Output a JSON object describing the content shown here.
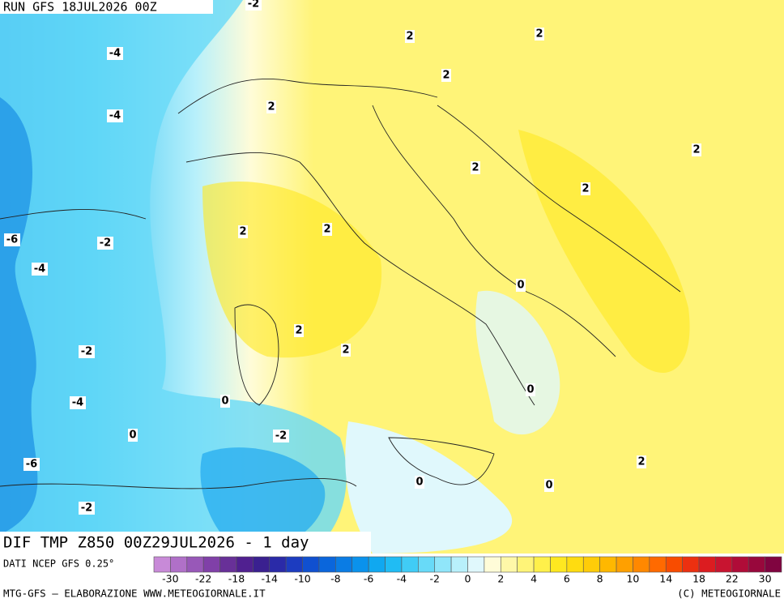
{
  "header": {
    "run": "RUN GFS 18JUL2026 00Z"
  },
  "map": {
    "title": "DIF TMP Z850 00Z29JUL2026 - 1 day",
    "contour_labels": [
      -2,
      2,
      2,
      -4,
      2,
      2,
      -4,
      2,
      2,
      2,
      2,
      2,
      -6,
      -2,
      -4,
      0,
      2,
      2,
      -2,
      0,
      -4,
      0,
      0,
      -2,
      2,
      -6,
      0,
      0,
      -2
    ]
  },
  "source": "DATI NCEP GFS 0.25°",
  "colorbar": {
    "colors": [
      "#c88ad8",
      "#b070c8",
      "#9858b8",
      "#8040a8",
      "#683098",
      "#502090",
      "#3a2090",
      "#2a2aa8",
      "#1c3cc0",
      "#1050d0",
      "#0a66dc",
      "#0a7ce4",
      "#0a92ec",
      "#10a8f0",
      "#20bcf4",
      "#40ccf6",
      "#68daf8",
      "#90e6fa",
      "#b8f0fb",
      "#e0f8fc",
      "#fffcd8",
      "#fff8a8",
      "#fff478",
      "#fff04a",
      "#ffe820",
      "#ffdc10",
      "#ffcc08",
      "#ffb800",
      "#ffa000",
      "#ff8800",
      "#ff6a00",
      "#f84c00",
      "#ec3010",
      "#dc1c20",
      "#c81430",
      "#b00c38",
      "#98083c",
      "#800440"
    ],
    "labels": [
      -30,
      -22,
      -18,
      -14,
      -10,
      -8,
      -6,
      -4,
      -2,
      0,
      2,
      4,
      6,
      8,
      10,
      14,
      18,
      22,
      30
    ]
  },
  "footer": {
    "left": "MTG-GFS – ELABORAZIONE WWW.METEOGIORNALE.IT",
    "right": "(C) METEOGIORNALE"
  }
}
